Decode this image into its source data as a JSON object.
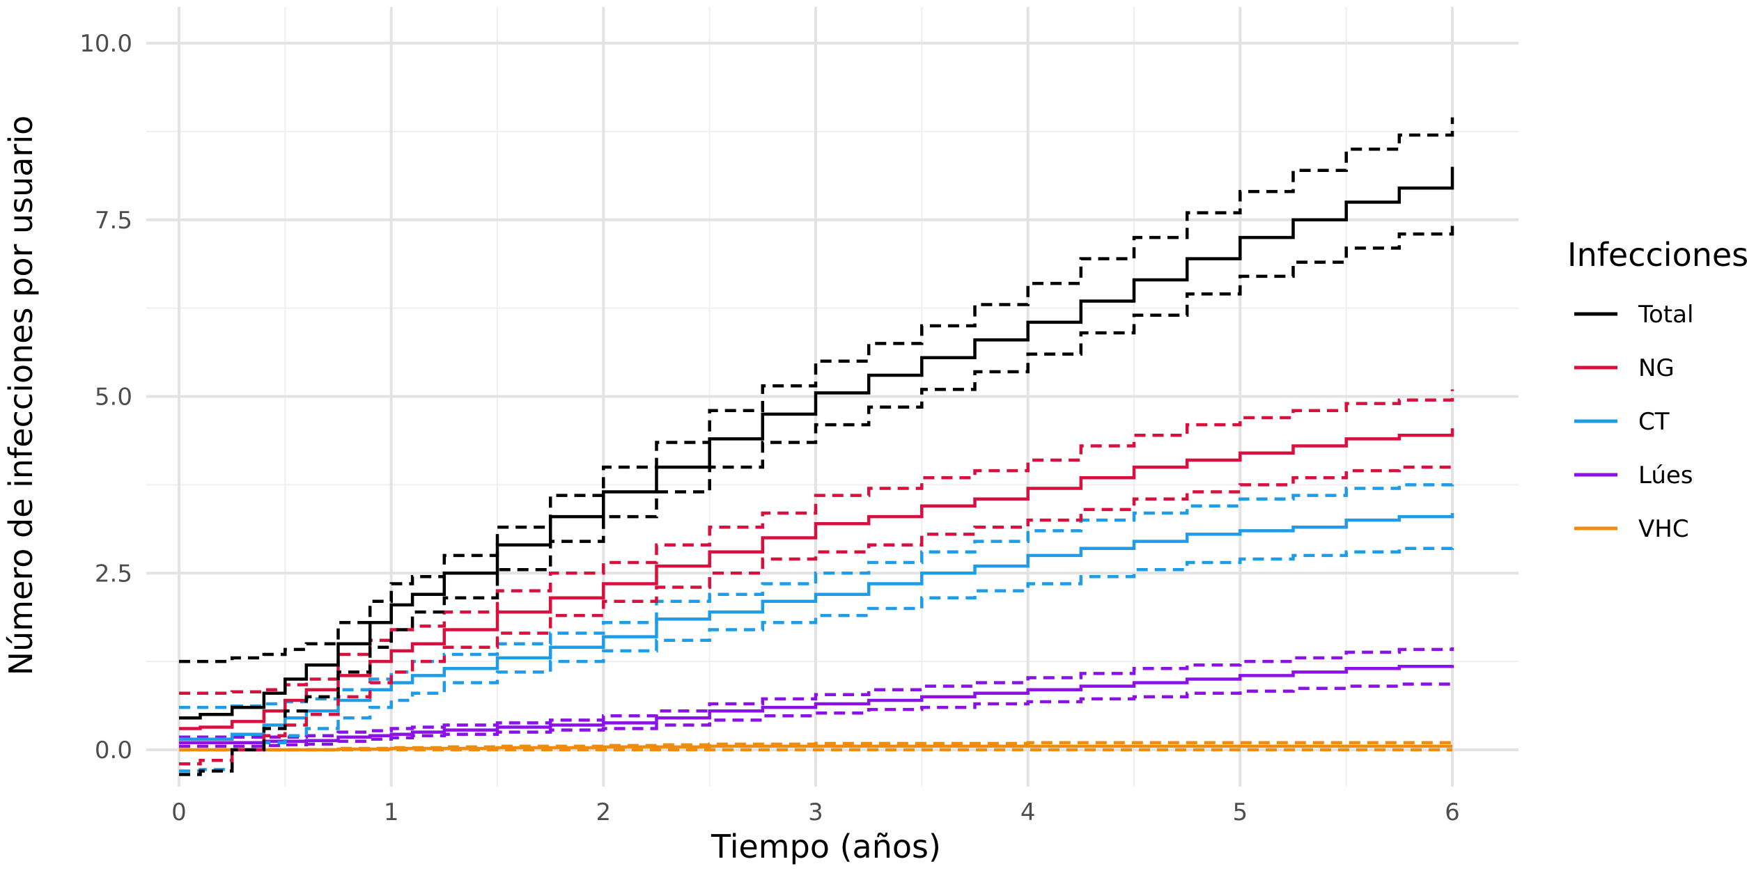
{
  "chart_data": {
    "type": "line",
    "xlabel": "Tiempo (años)",
    "ylabel": "Número de infecciones por usuario",
    "xlim": [
      0,
      6
    ],
    "ylim": [
      -0.4,
      10.2
    ],
    "x_ticks": [
      "0",
      "1",
      "2",
      "3",
      "4",
      "5",
      "6"
    ],
    "y_ticks": [
      "0.0",
      "2.5",
      "5.0",
      "7.5",
      "10.0"
    ],
    "grid": true,
    "legend": {
      "title": "Infecciones",
      "position": "right"
    },
    "x": [
      0,
      0.1,
      0.25,
      0.4,
      0.5,
      0.6,
      0.75,
      0.9,
      1.0,
      1.1,
      1.25,
      1.5,
      1.75,
      2.0,
      2.25,
      2.5,
      2.75,
      3.0,
      3.25,
      3.5,
      3.75,
      4.0,
      4.25,
      4.5,
      4.75,
      5.0,
      5.25,
      5.5,
      5.75,
      6.0
    ],
    "series": [
      {
        "name": "Total",
        "color": "#000000",
        "values": [
          0.45,
          0.5,
          0.6,
          0.8,
          1.0,
          1.2,
          1.5,
          1.8,
          2.05,
          2.2,
          2.5,
          2.9,
          3.3,
          3.65,
          4.0,
          4.4,
          4.75,
          5.05,
          5.3,
          5.55,
          5.8,
          6.05,
          6.35,
          6.65,
          6.95,
          7.25,
          7.5,
          7.75,
          7.95,
          8.25
        ],
        "lower": [
          -0.35,
          -0.3,
          0.0,
          0.3,
          0.55,
          0.75,
          1.1,
          1.45,
          1.7,
          1.95,
          2.15,
          2.55,
          2.95,
          3.3,
          3.65,
          4.0,
          4.35,
          4.6,
          4.85,
          5.1,
          5.35,
          5.6,
          5.9,
          6.15,
          6.45,
          6.7,
          6.9,
          7.1,
          7.3,
          7.45
        ],
        "upper": [
          1.25,
          1.25,
          1.3,
          1.35,
          1.42,
          1.5,
          1.8,
          2.1,
          2.35,
          2.45,
          2.75,
          3.15,
          3.6,
          4.0,
          4.35,
          4.8,
          5.15,
          5.5,
          5.75,
          6.0,
          6.3,
          6.6,
          6.95,
          7.25,
          7.6,
          7.9,
          8.2,
          8.5,
          8.7,
          8.95
        ]
      },
      {
        "name": "NG",
        "color": "#d7103e",
        "values": [
          0.3,
          0.32,
          0.4,
          0.55,
          0.7,
          0.85,
          1.05,
          1.25,
          1.4,
          1.5,
          1.7,
          1.95,
          2.15,
          2.35,
          2.6,
          2.8,
          3.0,
          3.2,
          3.3,
          3.45,
          3.55,
          3.7,
          3.85,
          4.0,
          4.1,
          4.2,
          4.3,
          4.4,
          4.45,
          4.55
        ],
        "lower": [
          -0.2,
          -0.15,
          0.0,
          0.2,
          0.35,
          0.5,
          0.75,
          0.95,
          1.1,
          1.25,
          1.45,
          1.65,
          1.9,
          2.1,
          2.3,
          2.5,
          2.7,
          2.8,
          2.9,
          3.05,
          3.15,
          3.25,
          3.4,
          3.55,
          3.65,
          3.75,
          3.85,
          3.95,
          4.0,
          4.05
        ],
        "upper": [
          0.8,
          0.8,
          0.82,
          0.85,
          0.92,
          1.0,
          1.35,
          1.55,
          1.7,
          1.75,
          1.95,
          2.25,
          2.5,
          2.65,
          2.9,
          3.15,
          3.35,
          3.6,
          3.7,
          3.85,
          3.95,
          4.1,
          4.3,
          4.45,
          4.6,
          4.7,
          4.8,
          4.9,
          4.95,
          5.1
        ]
      },
      {
        "name": "CT",
        "color": "#1f9ce8",
        "values": [
          0.15,
          0.15,
          0.22,
          0.35,
          0.45,
          0.55,
          0.7,
          0.85,
          0.95,
          1.05,
          1.15,
          1.3,
          1.45,
          1.6,
          1.85,
          1.95,
          2.1,
          2.2,
          2.35,
          2.5,
          2.6,
          2.75,
          2.85,
          2.95,
          3.05,
          3.1,
          3.15,
          3.25,
          3.3,
          3.35
        ],
        "lower": [
          -0.3,
          -0.28,
          0.0,
          0.1,
          0.2,
          0.3,
          0.45,
          0.6,
          0.7,
          0.8,
          0.95,
          1.1,
          1.25,
          1.4,
          1.55,
          1.7,
          1.8,
          1.9,
          2.0,
          2.15,
          2.25,
          2.35,
          2.45,
          2.55,
          2.65,
          2.7,
          2.75,
          2.8,
          2.85,
          2.9
        ],
        "upper": [
          0.6,
          0.6,
          0.62,
          0.65,
          0.68,
          0.72,
          0.85,
          1.0,
          1.1,
          1.25,
          1.35,
          1.5,
          1.65,
          1.8,
          2.1,
          2.2,
          2.35,
          2.5,
          2.65,
          2.8,
          2.95,
          3.1,
          3.25,
          3.35,
          3.45,
          3.55,
          3.6,
          3.7,
          3.75,
          3.8
        ]
      },
      {
        "name": "Lúes",
        "color": "#8a12e6",
        "values": [
          0.1,
          0.1,
          0.1,
          0.12,
          0.12,
          0.13,
          0.18,
          0.2,
          0.22,
          0.25,
          0.28,
          0.32,
          0.35,
          0.38,
          0.45,
          0.55,
          0.6,
          0.65,
          0.7,
          0.75,
          0.8,
          0.85,
          0.9,
          0.95,
          1.0,
          1.05,
          1.1,
          1.15,
          1.18,
          1.2
        ],
        "lower": [
          0.05,
          0.05,
          0.05,
          0.06,
          0.07,
          0.08,
          0.12,
          0.15,
          0.17,
          0.2,
          0.22,
          0.25,
          0.28,
          0.3,
          0.35,
          0.42,
          0.48,
          0.52,
          0.57,
          0.6,
          0.65,
          0.68,
          0.72,
          0.75,
          0.8,
          0.83,
          0.87,
          0.9,
          0.93,
          0.95
        ],
        "upper": [
          0.18,
          0.18,
          0.18,
          0.18,
          0.18,
          0.2,
          0.25,
          0.27,
          0.3,
          0.32,
          0.35,
          0.38,
          0.42,
          0.48,
          0.55,
          0.65,
          0.72,
          0.78,
          0.85,
          0.9,
          0.95,
          1.02,
          1.08,
          1.15,
          1.2,
          1.25,
          1.3,
          1.38,
          1.42,
          1.45
        ]
      },
      {
        "name": "VHC",
        "color": "#f08c0c",
        "values": [
          0.0,
          0.0,
          0.0,
          0.0,
          0.0,
          0.0,
          0.01,
          0.01,
          0.02,
          0.02,
          0.02,
          0.03,
          0.03,
          0.04,
          0.04,
          0.05,
          0.05,
          0.05,
          0.05,
          0.05,
          0.05,
          0.05,
          0.05,
          0.05,
          0.05,
          0.05,
          0.05,
          0.05,
          0.05,
          0.05
        ],
        "lower": [
          0.0,
          0.0,
          0.0,
          0.0,
          0.0,
          0.0,
          0.0,
          0.0,
          0.0,
          0.0,
          0.0,
          0.0,
          0.0,
          0.0,
          0.0,
          0.0,
          0.0,
          0.0,
          0.0,
          0.0,
          0.0,
          0.0,
          0.0,
          0.0,
          0.0,
          0.0,
          0.0,
          0.0,
          0.0,
          0.0
        ],
        "upper": [
          0.0,
          0.0,
          0.0,
          0.0,
          0.0,
          0.0,
          0.02,
          0.02,
          0.03,
          0.03,
          0.04,
          0.05,
          0.05,
          0.06,
          0.07,
          0.08,
          0.08,
          0.09,
          0.09,
          0.09,
          0.09,
          0.1,
          0.1,
          0.1,
          0.1,
          0.1,
          0.1,
          0.1,
          0.1,
          0.1
        ]
      }
    ]
  }
}
